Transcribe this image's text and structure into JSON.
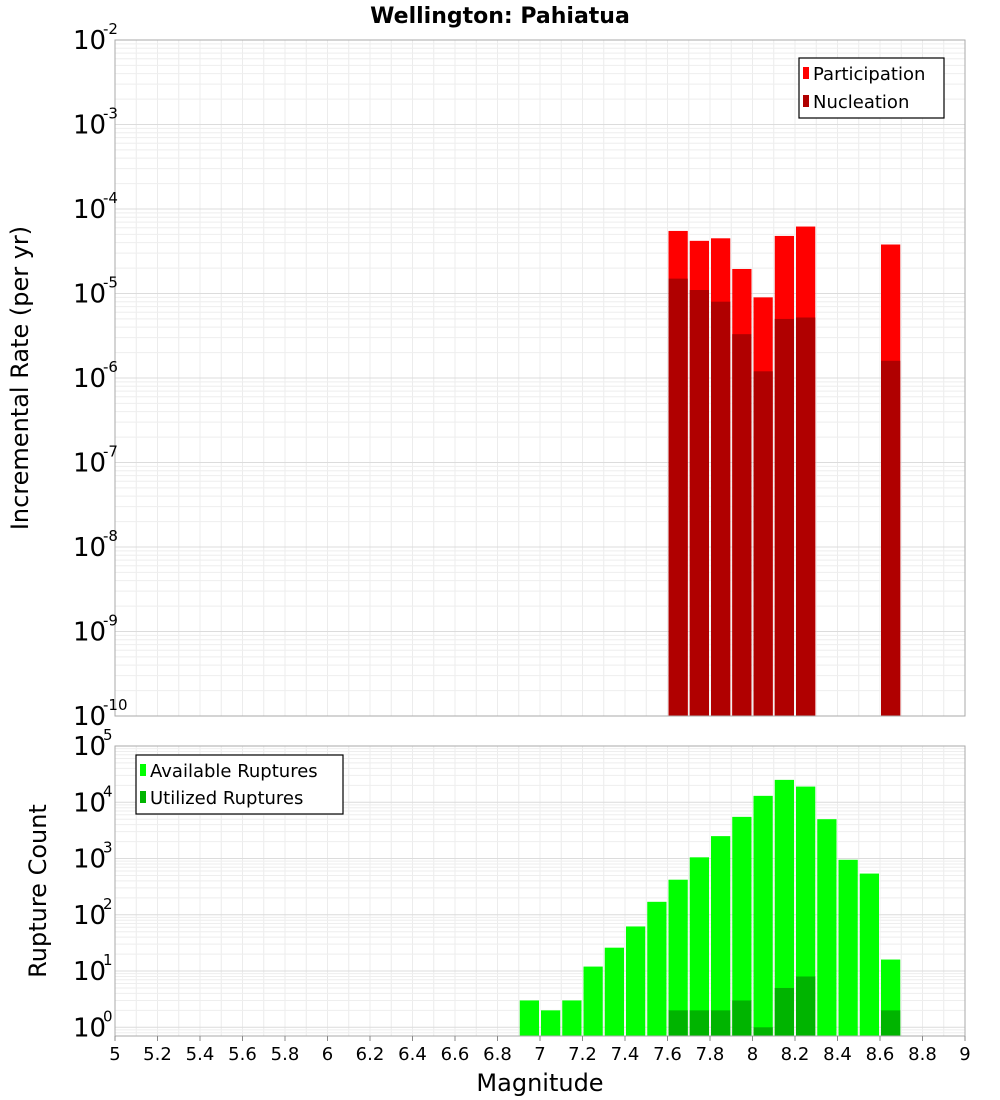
{
  "chart_data": [
    {
      "type": "bar",
      "title": "Wellington: Pahiatua",
      "xlabel": "Magnitude",
      "ylabel": "Incremental Rate (per yr)",
      "yscale": "log",
      "ylim": [
        1e-10,
        0.01
      ],
      "xlim": [
        5,
        9
      ],
      "bin_width": 0.1,
      "legend_position": "top-right",
      "y_tick_exponents": [
        "-10",
        "-9",
        "-8",
        "-7",
        "-6",
        "-5",
        "-4",
        "-3",
        "-2"
      ],
      "series": [
        {
          "name": "Participation",
          "color": "#ff0000",
          "x": [
            7.65,
            7.75,
            7.85,
            7.95,
            8.05,
            8.15,
            8.25,
            8.65
          ],
          "values": [
            5.5e-05,
            4.2e-05,
            4.5e-05,
            1.95e-05,
            9e-06,
            4.8e-05,
            6.2e-05,
            3.8e-05
          ]
        },
        {
          "name": "Nucleation",
          "color": "#b00000",
          "x": [
            7.65,
            7.75,
            7.85,
            7.95,
            8.05,
            8.15,
            8.25,
            8.65
          ],
          "values": [
            1.5e-05,
            1.1e-05,
            8e-06,
            3.3e-06,
            1.2e-06,
            5e-06,
            5.2e-06,
            1.6e-06
          ]
        }
      ]
    },
    {
      "type": "bar",
      "title": "",
      "xlabel": "Magnitude",
      "ylabel": "Rupture Count",
      "yscale": "log",
      "ylim": [
        0.7,
        100000
      ],
      "xlim": [
        5,
        9
      ],
      "bin_width": 0.1,
      "legend_position": "top-left",
      "x_tick_labels": [
        "5",
        "5.2",
        "5.4",
        "5.6",
        "5.8",
        "6",
        "6.2",
        "6.4",
        "6.6",
        "6.8",
        "7",
        "7.2",
        "7.4",
        "7.6",
        "7.8",
        "8",
        "8.2",
        "8.4",
        "8.6",
        "8.8",
        "9"
      ],
      "y_tick_exponents": [
        "0",
        "1",
        "2",
        "3",
        "4",
        "5"
      ],
      "series": [
        {
          "name": "Available Ruptures",
          "color": "#00ff00",
          "x": [
            6.95,
            7.05,
            7.15,
            7.25,
            7.35,
            7.45,
            7.55,
            7.65,
            7.75,
            7.85,
            7.95,
            8.05,
            8.15,
            8.25,
            8.35,
            8.45,
            8.55,
            8.65
          ],
          "values": [
            3,
            2,
            3,
            12,
            26,
            62,
            170,
            420,
            1050,
            2500,
            5500,
            13000,
            25000,
            19000,
            5000,
            950,
            540,
            16
          ]
        },
        {
          "name": "Utilized Ruptures",
          "color": "#00b400",
          "x": [
            7.65,
            7.75,
            7.85,
            7.95,
            8.05,
            8.15,
            8.25,
            8.65
          ],
          "values": [
            2,
            2,
            2,
            3,
            1,
            5,
            8,
            2
          ]
        }
      ]
    }
  ]
}
